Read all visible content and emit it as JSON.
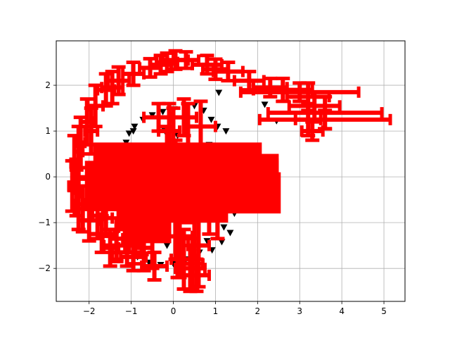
{
  "chart_data": {
    "type": "scatter",
    "title": "",
    "xlabel": "",
    "ylabel": "",
    "xlim": [
      -2.78,
      5.5
    ],
    "ylim": [
      -2.72,
      2.97
    ],
    "grid": true,
    "legend": "none",
    "x_ticks": [
      -2,
      -1,
      0,
      1,
      2,
      3,
      4,
      5
    ],
    "y_ticks": [
      -2,
      -1,
      0,
      1,
      2
    ],
    "x_tick_labels": [
      "−2",
      "−1",
      "0",
      "1",
      "2",
      "3",
      "4",
      "5"
    ],
    "y_tick_labels": [
      "−2",
      "−1",
      "0",
      "1",
      "2"
    ],
    "colors": {
      "markers": "#000000",
      "errorbars": "#ff0000",
      "grid": "#b0b0b0"
    },
    "series": [
      {
        "marker": "triangle-down",
        "color": "#000000",
        "points": [
          [
            2.45,
            1.22
          ],
          [
            2.17,
            1.58
          ],
          [
            1.62,
            0.58
          ],
          [
            1.52,
            0.34
          ],
          [
            1.08,
            1.84
          ],
          [
            1.25,
            1.0
          ],
          [
            1.55,
            0.1
          ],
          [
            1.48,
            -0.35
          ],
          [
            1.35,
            -1.22
          ],
          [
            1.15,
            -1.42
          ],
          [
            0.92,
            -1.6
          ],
          [
            0.62,
            -1.65
          ],
          [
            0.3,
            -1.8
          ],
          [
            0.0,
            -1.9
          ],
          [
            -0.3,
            -1.92
          ],
          [
            -0.58,
            -1.87
          ],
          [
            -0.85,
            -1.75
          ],
          [
            -1.12,
            -1.55
          ],
          [
            -1.35,
            -1.25
          ],
          [
            -1.45,
            -0.45
          ],
          [
            -1.3,
            0.2
          ],
          [
            -1.22,
            0.52
          ],
          [
            -1.12,
            0.75
          ],
          [
            -1.05,
            0.95
          ],
          [
            -0.92,
            1.1
          ],
          [
            -0.72,
            1.25
          ],
          [
            -0.5,
            1.35
          ],
          [
            -0.25,
            1.42
          ],
          [
            0.02,
            1.48
          ],
          [
            0.28,
            1.52
          ],
          [
            0.5,
            1.55
          ],
          [
            0.72,
            1.45
          ],
          [
            0.9,
            1.25
          ],
          [
            1.05,
            1.1
          ],
          [
            0.85,
            0.7
          ],
          [
            0.75,
            0.65
          ],
          [
            -0.55,
            0.65
          ],
          [
            -0.95,
            1.0
          ],
          [
            0.45,
            0.58
          ],
          [
            1.35,
            0.4
          ],
          [
            1.45,
            -0.8
          ],
          [
            0.8,
            -1.4
          ],
          [
            -0.15,
            -1.5
          ],
          [
            -1.2,
            -0.8
          ],
          [
            -1.38,
            0.0
          ],
          [
            -0.2,
            1.0
          ],
          [
            0.3,
            1.0
          ],
          [
            1.2,
            -1.1
          ],
          [
            -1.0,
            -1.2
          ],
          [
            0.1,
            0.9
          ]
        ]
      }
    ],
    "errorbars": {
      "color": "#ff0000",
      "outer_ring": [
        [
          -2.4,
          -0.2,
          0.08,
          0.55
        ],
        [
          -2.35,
          0.3,
          0.08,
          0.6
        ],
        [
          -2.2,
          0.75,
          0.1,
          0.55
        ],
        [
          -2.05,
          1.2,
          0.15,
          0.5
        ],
        [
          -1.85,
          1.55,
          0.18,
          0.45
        ],
        [
          -1.6,
          1.9,
          0.2,
          0.35
        ],
        [
          -1.3,
          2.1,
          0.25,
          0.3
        ],
        [
          -0.95,
          2.25,
          0.25,
          0.25
        ],
        [
          -0.55,
          2.38,
          0.25,
          0.2
        ],
        [
          -0.15,
          2.5,
          0.25,
          0.2
        ],
        [
          0.3,
          2.55,
          0.3,
          0.18
        ],
        [
          0.8,
          2.45,
          0.35,
          0.2
        ],
        [
          1.3,
          2.3,
          0.35,
          0.2
        ],
        [
          1.8,
          2.1,
          0.35,
          0.2
        ],
        [
          2.3,
          1.95,
          0.4,
          0.2
        ],
        [
          -2.25,
          -0.6,
          0.12,
          0.55
        ],
        [
          -2.0,
          -0.95,
          0.25,
          0.45
        ],
        [
          -1.7,
          -1.25,
          0.3,
          0.4
        ],
        [
          -1.35,
          -1.5,
          0.3,
          0.35
        ],
        [
          -0.95,
          -1.75,
          0.3,
          0.3
        ],
        [
          -0.45,
          -1.95,
          0.3,
          0.3
        ],
        [
          -2.3,
          -0.35,
          0.1,
          0.5
        ],
        [
          -1.95,
          1.0,
          0.15,
          0.5
        ],
        [
          -0.3,
          2.45,
          0.25,
          0.2
        ],
        [
          -2.15,
          -0.7,
          0.2,
          0.5
        ],
        [
          -1.1,
          -1.65,
          0.35,
          0.3
        ],
        [
          0.05,
          2.55,
          0.3,
          0.2
        ],
        [
          -2.25,
          0.55,
          0.1,
          0.55
        ],
        [
          -1.45,
          1.95,
          0.25,
          0.35
        ],
        [
          1.0,
          2.35,
          0.3,
          0.22
        ]
      ],
      "right_arm": [
        [
          3.2,
          1.75,
          0.5,
          0.3
        ],
        [
          3.6,
          1.4,
          1.35,
          0.35
        ],
        [
          3.6,
          1.25,
          1.55,
          0.2
        ],
        [
          3.3,
          1.0,
          0.25,
          0.2
        ],
        [
          3.0,
          1.85,
          1.4,
          0.2
        ],
        [
          2.6,
          1.9,
          0.7,
          0.25
        ],
        [
          3.35,
          1.55,
          0.6,
          0.3
        ],
        [
          3.2,
          1.25,
          0.3,
          0.35
        ]
      ],
      "center_blob": [
        [
          0.2,
          -0.2,
          2.3,
          0.55
        ],
        [
          -0.2,
          -0.15,
          1.5,
          0.6
        ],
        [
          -0.4,
          0.1,
          1.0,
          0.5
        ],
        [
          0.1,
          0.3,
          2.0,
          0.45
        ],
        [
          0.6,
          0.05,
          1.9,
          0.45
        ],
        [
          0.9,
          -0.35,
          1.65,
          0.45
        ],
        [
          1.2,
          0.0,
          1.3,
          0.5
        ],
        [
          -0.6,
          -0.3,
          0.9,
          0.45
        ],
        [
          -0.85,
          -0.55,
          0.5,
          0.6
        ],
        [
          -0.6,
          -0.95,
          0.55,
          0.5
        ],
        [
          0.4,
          -0.6,
          0.9,
          0.4
        ],
        [
          1.4,
          -0.1,
          1.1,
          0.5
        ]
      ],
      "vertical_strokes": [
        [
          -0.1,
          1.0,
          0.25,
          0.6
        ],
        [
          0.0,
          0.5,
          0.3,
          1.0
        ],
        [
          0.05,
          -0.5,
          0.25,
          1.3
        ],
        [
          0.15,
          -1.3,
          0.3,
          0.9
        ],
        [
          0.25,
          -1.8,
          0.3,
          0.65
        ],
        [
          0.4,
          -2.0,
          0.35,
          0.5
        ],
        [
          0.55,
          -2.15,
          0.3,
          0.35
        ],
        [
          0.6,
          -1.5,
          0.25,
          0.9
        ],
        [
          0.5,
          -0.8,
          0.3,
          1.0
        ],
        [
          0.35,
          0.3,
          0.25,
          1.3
        ],
        [
          0.25,
          1.3,
          0.3,
          0.4
        ],
        [
          0.65,
          1.1,
          0.35,
          0.55
        ],
        [
          -0.35,
          1.3,
          0.35,
          0.3
        ],
        [
          -0.15,
          0.2,
          0.3,
          0.9
        ],
        [
          0.1,
          -0.9,
          0.3,
          1.3
        ],
        [
          0.45,
          -1.9,
          0.25,
          0.55
        ],
        [
          -0.5,
          -1.3,
          0.25,
          0.7
        ],
        [
          -0.75,
          -1.0,
          0.2,
          0.7
        ],
        [
          -0.95,
          -1.5,
          0.2,
          0.4
        ],
        [
          -1.15,
          -1.1,
          0.15,
          0.4
        ],
        [
          -1.35,
          -1.35,
          0.15,
          0.45
        ],
        [
          -1.6,
          -0.9,
          0.15,
          0.4
        ],
        [
          -1.8,
          -0.85,
          0.12,
          0.5
        ],
        [
          -1.5,
          -1.55,
          0.2,
          0.4
        ],
        [
          0.85,
          -0.75,
          0.2,
          0.5
        ],
        [
          1.05,
          -0.8,
          0.2,
          0.55
        ],
        [
          -0.7,
          -1.55,
          0.2,
          0.5
        ]
      ]
    }
  }
}
